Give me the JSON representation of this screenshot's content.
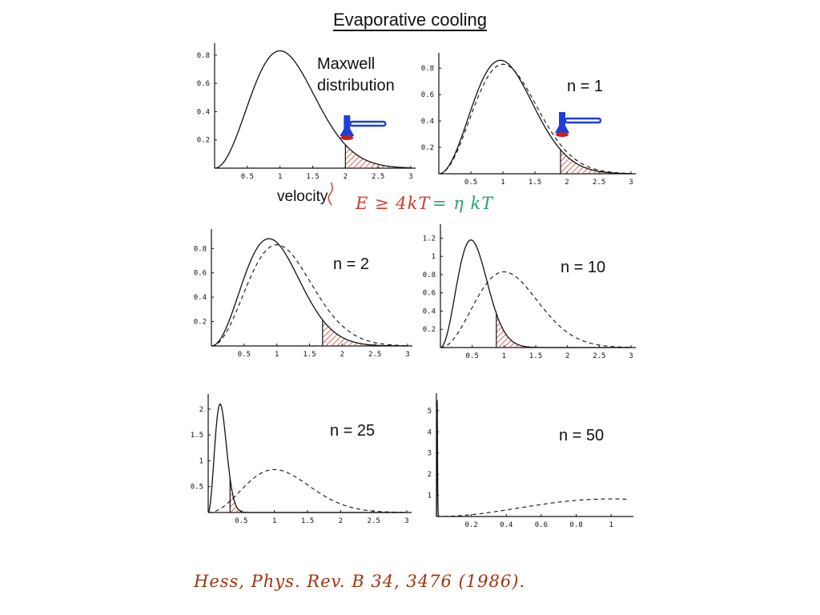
{
  "title": "Evaporative cooling",
  "panel_labels": {
    "maxwell_line1": "Maxwell",
    "maxwell_line2": "distribution",
    "velocity": "velocity"
  },
  "energy_condition": {
    "left": "E ≥ 4kT",
    "right": "= η kT"
  },
  "citation": "Hess, Phys. Rev. B 34, 3476 (1986).",
  "colors": {
    "curve": "#111111",
    "hatch": "#d23b2b",
    "knife_blue": "#1f3fd6",
    "knife_red": "#c62020"
  },
  "icons": [
    "rf-knife-icon"
  ],
  "chart_data": [
    {
      "type": "line",
      "panel": "maxwell",
      "title": "",
      "xlabel": "velocity",
      "ylabel": "",
      "xlim": [
        0,
        3
      ],
      "ylim": [
        0,
        0.85
      ],
      "xticks": [
        0.5,
        1,
        1.5,
        2,
        2.5,
        3
      ],
      "yticks": [
        0.2,
        0.4,
        0.6,
        0.8
      ],
      "annotation": "",
      "solid_v0": 1.0,
      "dashed_v0": null,
      "cut": 2.0,
      "hatched": true,
      "knife": true,
      "series": [
        {
          "style": "solid",
          "x": [
            0,
            0.25,
            0.5,
            0.75,
            1.0,
            1.25,
            1.5,
            1.75,
            2.0,
            2.25,
            2.5,
            2.75,
            3.0
          ],
          "y": [
            0,
            0.1,
            0.33,
            0.63,
            0.83,
            0.8,
            0.59,
            0.34,
            0.15,
            0.05,
            0.01,
            0.0,
            0.0
          ]
        }
      ]
    },
    {
      "type": "line",
      "panel": "n1",
      "title": "",
      "xlabel": "",
      "ylabel": "",
      "xlim": [
        0,
        3
      ],
      "ylim": [
        0,
        0.88
      ],
      "xticks": [
        0.5,
        1,
        1.5,
        2,
        2.5,
        3
      ],
      "yticks": [
        0.2,
        0.4,
        0.6,
        0.8
      ],
      "annotation": "n = 1",
      "solid_v0": 0.96,
      "dashed_v0": 1.0,
      "cut": 1.9,
      "hatched": true,
      "knife": true,
      "series": [
        {
          "style": "solid",
          "x": [
            0,
            0.5,
            0.96,
            1.5,
            1.9,
            2.5
          ],
          "y": [
            0,
            0.34,
            0.86,
            0.55,
            0.18,
            0.02
          ]
        },
        {
          "style": "dashed",
          "x": [
            0,
            0.5,
            1.0,
            1.5,
            2.0,
            2.5,
            3.0
          ],
          "y": [
            0,
            0.33,
            0.83,
            0.59,
            0.15,
            0.01,
            0.0
          ]
        }
      ]
    },
    {
      "type": "line",
      "panel": "n2",
      "title": "",
      "xlabel": "",
      "ylabel": "",
      "xlim": [
        0,
        3
      ],
      "ylim": [
        0,
        0.92
      ],
      "xticks": [
        0.5,
        1,
        1.5,
        2,
        2.5,
        3
      ],
      "yticks": [
        0.2,
        0.4,
        0.6,
        0.8
      ],
      "annotation": "n = 2",
      "solid_v0": 0.88,
      "dashed_v0": 1.0,
      "cut": 1.7,
      "hatched": true,
      "knife": false,
      "series": [
        {
          "style": "solid",
          "x": [
            0,
            0.5,
            0.88,
            1.3,
            1.7,
            2.2
          ],
          "y": [
            0,
            0.42,
            0.88,
            0.62,
            0.24,
            0.03
          ]
        },
        {
          "style": "dashed",
          "x": [
            0,
            0.5,
            1.0,
            1.5,
            2.0,
            2.5,
            3.0
          ],
          "y": [
            0,
            0.33,
            0.83,
            0.59,
            0.15,
            0.01,
            0.0
          ]
        }
      ]
    },
    {
      "type": "line",
      "panel": "n10",
      "title": "",
      "xlabel": "",
      "ylabel": "",
      "xlim": [
        0,
        3
      ],
      "ylim": [
        0,
        1.3
      ],
      "xticks": [
        0.5,
        1,
        1.5,
        2,
        2.5,
        3
      ],
      "yticks": [
        0.2,
        0.4,
        0.6,
        0.8,
        1,
        1.2
      ],
      "annotation": "n = 10",
      "solid_v0": 0.48,
      "dashed_v0": 1.0,
      "cut": 0.88,
      "hatched": true,
      "knife": false,
      "series": [
        {
          "style": "solid",
          "x": [
            0,
            0.25,
            0.48,
            0.7,
            0.88,
            1.2
          ],
          "y": [
            0,
            0.52,
            1.18,
            0.76,
            0.27,
            0.02
          ]
        },
        {
          "style": "dashed",
          "x": [
            0,
            0.5,
            1.0,
            1.5,
            2.0,
            2.5,
            3.0
          ],
          "y": [
            0,
            0.33,
            0.83,
            0.59,
            0.15,
            0.01,
            0.0
          ]
        }
      ]
    },
    {
      "type": "line",
      "panel": "n25",
      "title": "",
      "xlabel": "",
      "ylabel": "",
      "xlim": [
        0,
        3
      ],
      "ylim": [
        0,
        2.2
      ],
      "xticks": [
        0.5,
        1,
        1.5,
        2,
        2.5,
        3
      ],
      "yticks": [
        0.5,
        1,
        1.5,
        2
      ],
      "annotation": "n = 25",
      "solid_v0": 0.18,
      "dashed_v0": 1.0,
      "cut": 0.33,
      "hatched": true,
      "knife": false,
      "series": [
        {
          "style": "solid",
          "x": [
            0,
            0.1,
            0.18,
            0.25,
            0.33,
            0.45
          ],
          "y": [
            0,
            0.85,
            2.1,
            1.2,
            0.3,
            0.01
          ]
        },
        {
          "style": "dashed",
          "x": [
            0,
            0.5,
            1.0,
            1.5,
            2.0,
            2.5,
            3.0
          ],
          "y": [
            0,
            0.33,
            0.83,
            0.59,
            0.15,
            0.01,
            0.0
          ]
        }
      ]
    },
    {
      "type": "line",
      "panel": "n50",
      "title": "",
      "xlabel": "",
      "ylabel": "",
      "xlim": [
        0,
        1.1
      ],
      "ylim": [
        0,
        5.6
      ],
      "xticks": [
        0.2,
        0.4,
        0.6,
        0.8,
        1
      ],
      "yticks": [
        1,
        2,
        3,
        4,
        5
      ],
      "annotation": "n = 50",
      "solid_v0": 0.004,
      "dashed_v0": 1.0,
      "cut": null,
      "hatched": false,
      "knife": false,
      "series": [
        {
          "style": "solid",
          "x": [
            0,
            0.002,
            0.004,
            0.007,
            0.012
          ],
          "y": [
            0,
            3.5,
            5.5,
            2.5,
            0.0
          ]
        },
        {
          "style": "dashed",
          "x": [
            0,
            0.2,
            0.4,
            0.6,
            0.8,
            1.0,
            1.1
          ],
          "y": [
            0,
            0.03,
            0.18,
            0.42,
            0.67,
            0.83,
            0.84
          ]
        }
      ]
    }
  ]
}
